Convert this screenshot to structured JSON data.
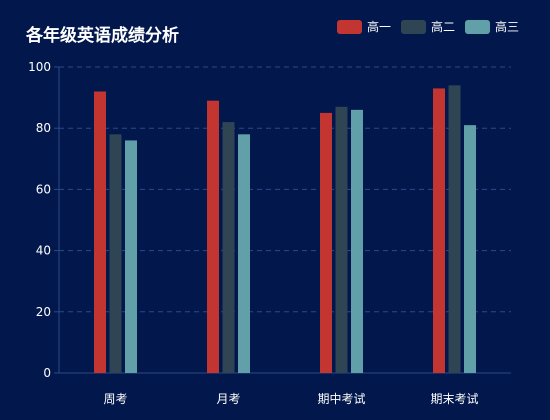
{
  "chart_data": {
    "type": "bar",
    "title": "各年级英语成绩分析",
    "categories": [
      "周考",
      "月考",
      "期中考试",
      "期末考试"
    ],
    "series": [
      {
        "name": "高一",
        "color": "#c23531",
        "values": [
          92,
          89,
          85,
          93
        ]
      },
      {
        "name": "高二",
        "color": "#2f4554",
        "values": [
          78,
          82,
          87,
          94
        ]
      },
      {
        "name": "高三",
        "color": "#61a0a8",
        "values": [
          76,
          78,
          86,
          81
        ]
      }
    ],
    "ylim": [
      0,
      100
    ],
    "yticks": [
      0,
      20,
      40,
      60,
      80,
      100
    ],
    "grid": true,
    "legend_position": "top-right"
  },
  "colors": {
    "background": "#02174b",
    "text": "#ffffff",
    "axis": "#2b4a8a",
    "grid": "#2b4a8a"
  }
}
